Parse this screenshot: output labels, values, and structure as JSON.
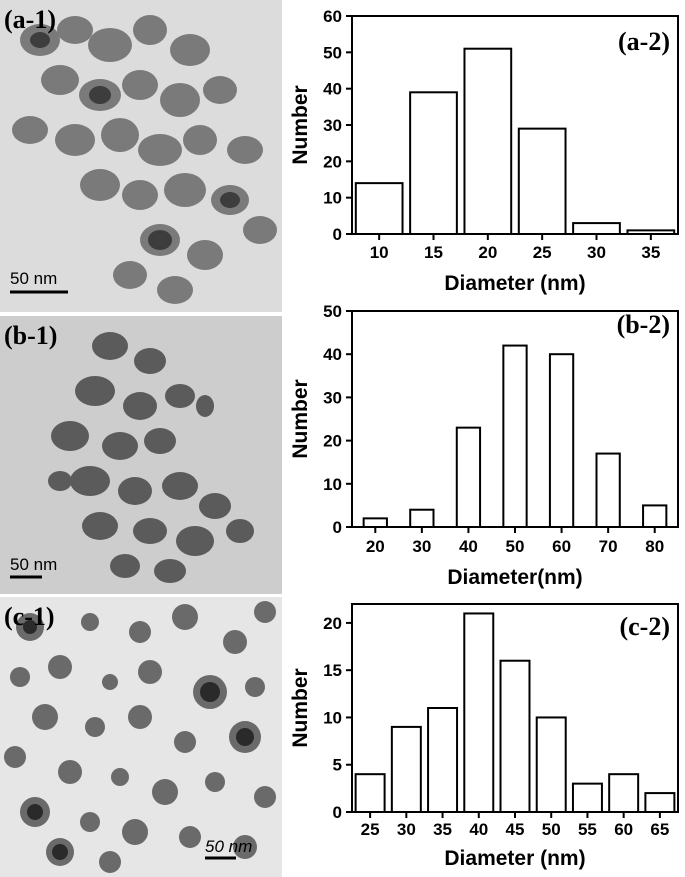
{
  "panels": [
    {
      "image": {
        "label": "(a-1)",
        "scale_bar": "50 nm",
        "background": "#dedede"
      },
      "chart_data": {
        "type": "bar",
        "label": "(a-2)",
        "categories": [
          "10",
          "15",
          "20",
          "25",
          "30",
          "35"
        ],
        "values": [
          14,
          39,
          51,
          29,
          3,
          1
        ],
        "xlabel": "Diameter (nm)",
        "ylabel": "Number",
        "ylim": [
          0,
          60
        ],
        "yticks": [
          0,
          10,
          20,
          30,
          40,
          50,
          60
        ],
        "bar_fill": "#ffffff",
        "bar_stroke": "#000000"
      }
    },
    {
      "image": {
        "label": "(b-1)",
        "scale_bar": "50 nm",
        "background": "#cfcfcf"
      },
      "chart_data": {
        "type": "bar",
        "label": "(b-2)",
        "categories": [
          "20",
          "30",
          "40",
          "50",
          "60",
          "70",
          "80"
        ],
        "values": [
          2,
          4,
          23,
          42,
          40,
          17,
          5
        ],
        "xlabel": "Diameter(nm)",
        "ylabel": "Number",
        "ylim": [
          0,
          50
        ],
        "yticks": [
          0,
          10,
          20,
          30,
          40,
          50
        ],
        "bar_fill": "#ffffff",
        "bar_stroke": "#000000"
      }
    },
    {
      "image": {
        "label": "(c-1)",
        "scale_bar": "50 nm",
        "background": "#e3e3e3"
      },
      "chart_data": {
        "type": "bar",
        "label": "(c-2)",
        "categories": [
          "25",
          "30",
          "35",
          "40",
          "45",
          "50",
          "55",
          "60",
          "65"
        ],
        "values": [
          4,
          9,
          11,
          21,
          16,
          10,
          3,
          4,
          2
        ],
        "xlabel": "Diameter (nm)",
        "ylabel": "Number",
        "ylim": [
          0,
          22
        ],
        "yticks": [
          0,
          5,
          10,
          15,
          20
        ],
        "bar_fill": "#ffffff",
        "bar_stroke": "#000000"
      }
    }
  ]
}
